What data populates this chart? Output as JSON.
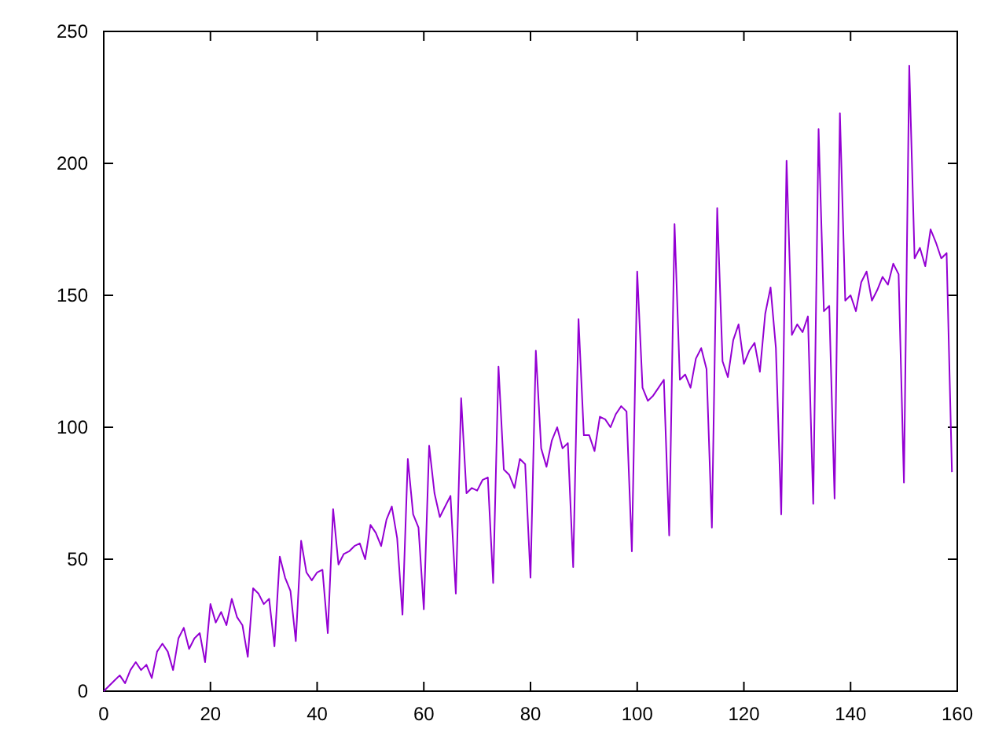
{
  "chart_data": {
    "type": "line",
    "xlim": [
      0,
      160
    ],
    "ylim": [
      0,
      250
    ],
    "xticks": [
      0,
      20,
      40,
      60,
      80,
      100,
      120,
      140,
      160
    ],
    "yticks": [
      0,
      50,
      100,
      150,
      200,
      250
    ],
    "x": [
      0,
      1,
      2,
      3,
      4,
      5,
      6,
      7,
      8,
      9,
      10,
      11,
      12,
      13,
      14,
      15,
      16,
      17,
      18,
      19,
      20,
      21,
      22,
      23,
      24,
      25,
      26,
      27,
      28,
      29,
      30,
      31,
      32,
      33,
      34,
      35,
      36,
      37,
      38,
      39,
      40,
      41,
      42,
      43,
      44,
      45,
      46,
      47,
      48,
      49,
      50,
      51,
      52,
      53,
      54,
      55,
      56,
      57,
      58,
      59,
      60,
      61,
      62,
      63,
      64,
      65,
      66,
      67,
      68,
      69,
      70,
      71,
      72,
      73,
      74,
      75,
      76,
      77,
      78,
      79,
      80,
      81,
      82,
      83,
      84,
      85,
      86,
      87,
      88,
      89,
      90,
      91,
      92,
      93,
      94,
      95,
      96,
      97,
      98,
      99,
      100,
      101,
      102,
      103,
      104,
      105,
      106,
      107,
      108,
      109,
      110,
      111,
      112,
      113,
      114,
      115,
      116,
      117,
      118,
      119,
      120,
      121,
      122,
      123,
      124,
      125,
      126,
      127,
      128,
      129,
      130,
      131,
      132,
      133,
      134,
      135,
      136,
      137,
      138,
      139,
      140,
      141,
      142,
      143,
      144,
      145,
      146,
      147,
      148,
      149,
      150,
      151,
      152,
      153,
      154,
      155,
      156,
      157,
      158,
      159
    ],
    "series": [
      {
        "color": "#9400d3",
        "values": [
          0,
          2,
          4,
          6,
          3,
          8,
          11,
          8,
          10,
          5,
          15,
          18,
          15,
          8,
          20,
          24,
          16,
          20,
          22,
          11,
          33,
          26,
          30,
          25,
          35,
          28,
          25,
          13,
          39,
          37,
          33,
          35,
          17,
          51,
          43,
          38,
          19,
          57,
          45,
          42,
          45,
          46,
          22,
          69,
          48,
          52,
          53,
          55,
          56,
          50,
          63,
          60,
          55,
          65,
          70,
          58,
          29,
          88,
          67,
          62,
          31,
          93,
          75,
          66,
          70,
          74,
          37,
          111,
          75,
          77,
          76,
          80,
          81,
          41,
          123,
          84,
          82,
          77,
          88,
          86,
          43,
          129,
          92,
          85,
          95,
          100,
          92,
          94,
          47,
          141,
          97,
          97,
          91,
          104,
          103,
          100,
          105,
          108,
          106,
          53,
          159,
          115,
          110,
          112,
          115,
          118,
          59,
          177,
          118,
          120,
          115,
          126,
          130,
          122,
          62,
          183,
          125,
          119,
          133,
          139,
          124,
          129,
          132,
          121,
          143,
          153,
          130,
          67,
          201,
          135,
          139,
          136,
          142,
          71,
          213,
          144,
          146,
          73,
          219,
          148,
          150,
          144,
          155,
          159,
          148,
          152,
          157,
          154,
          162,
          158,
          79,
          237,
          164,
          168,
          161,
          175,
          170,
          164,
          166,
          83
        ]
      }
    ]
  }
}
